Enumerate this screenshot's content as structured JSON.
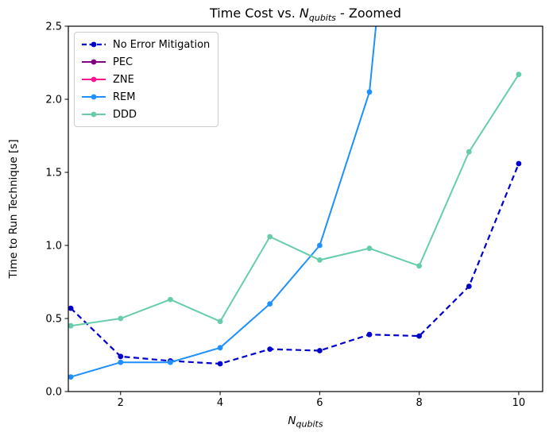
{
  "figure": {
    "title": {
      "prefix": "Time Cost vs. ",
      "var": "N",
      "var_sub": "qubits",
      "suffix": " - Zoomed"
    }
  },
  "chart_data": {
    "type": "line",
    "title": "Time Cost vs. N_qubits - Zoomed",
    "xlabel": {
      "var": "N",
      "sub": "qubits"
    },
    "ylabel": "Time to Run Technique [s]",
    "xlim": [
      0.95,
      10.48
    ],
    "ylim": [
      0,
      2.5
    ],
    "x_ticks": [
      2,
      4,
      6,
      8,
      10
    ],
    "x_tick_labels": [
      "2",
      "4",
      "6",
      "8",
      "10"
    ],
    "y_ticks": [
      0.0,
      0.5,
      1.0,
      1.5,
      2.0,
      2.5
    ],
    "y_tick_labels": [
      "0.0",
      "0.5",
      "1.0",
      "1.5",
      "2.0",
      "2.5"
    ],
    "grid": false,
    "legend_position": "upper left",
    "x": [
      1,
      2,
      3,
      4,
      5,
      6,
      7,
      8,
      9,
      10
    ],
    "series": [
      {
        "name": "No Error Mitigation",
        "color": "#0000CD",
        "linestyle": "dashed",
        "marker": "circle",
        "values": [
          0.57,
          0.24,
          0.21,
          0.19,
          0.29,
          0.28,
          0.39,
          0.38,
          0.72,
          1.56
        ]
      },
      {
        "name": "PEC",
        "color": "#800080",
        "linestyle": "solid",
        "marker": "circle",
        "values": [],
        "note": "curve lies above the zoomed y-range; visible only in legend"
      },
      {
        "name": "ZNE",
        "color": "#FF1493",
        "linestyle": "solid",
        "marker": "circle",
        "values": [],
        "note": "curve lies above the zoomed y-range; visible only in legend"
      },
      {
        "name": "REM",
        "color": "#1E90FF",
        "linestyle": "solid",
        "marker": "circle",
        "values": [
          0.1,
          0.2,
          0.2,
          0.3,
          0.6,
          1.0,
          2.05
        ],
        "offscreen_continuation": {
          "x": 8,
          "y": 5.5
        },
        "note": "line exits top of axes between x=7 and x=8"
      },
      {
        "name": "DDD",
        "color": "#66CDAA",
        "linestyle": "solid",
        "marker": "circle",
        "values": [
          0.45,
          0.5,
          0.63,
          0.48,
          1.06,
          0.9,
          0.98,
          0.86,
          1.64,
          2.17
        ]
      }
    ]
  }
}
